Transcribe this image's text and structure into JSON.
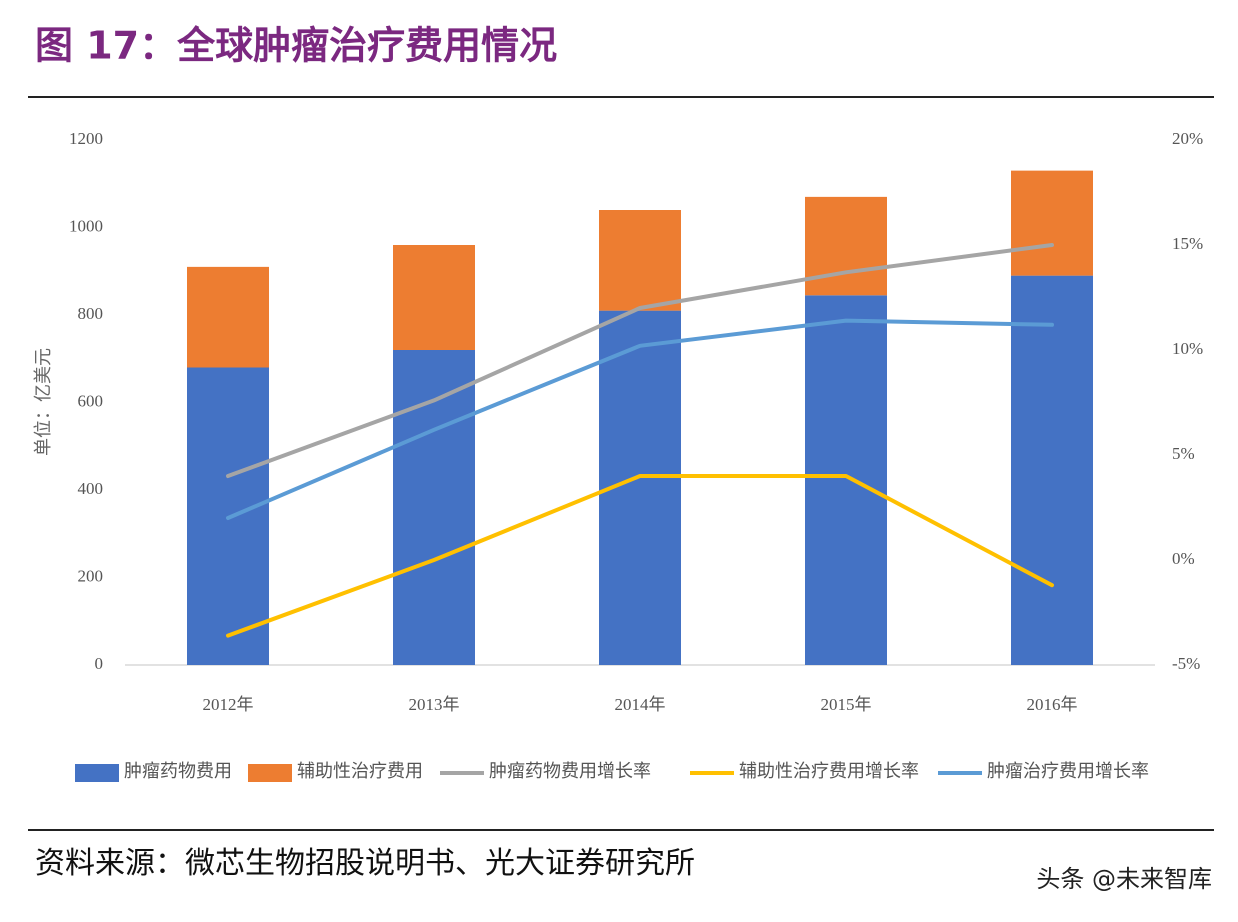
{
  "chart_data": {
    "type": "bar",
    "title": "图 17：全球肿瘤治疗费用情况",
    "y_label": "单位：亿美元",
    "source": "资料来源：微芯生物招股说明书、光大证券研究所",
    "watermark": "头条 @未来智库",
    "categories": [
      "2012年",
      "2013年",
      "2014年",
      "2015年",
      "2016年"
    ],
    "stacked": true,
    "ylim": [
      0,
      1200
    ],
    "yticks": [
      0,
      200,
      400,
      600,
      800,
      1000,
      1200
    ],
    "y2lim": [
      -5,
      20
    ],
    "y2ticks": [
      {
        "value": -5,
        "label": "-5%"
      },
      {
        "value": 0,
        "label": "0%"
      },
      {
        "value": 5,
        "label": "5%"
      },
      {
        "value": 10,
        "label": "10%"
      },
      {
        "value": 15,
        "label": "15%"
      },
      {
        "value": 20,
        "label": "20%"
      }
    ],
    "legend": "bottom",
    "series": [
      {
        "name": "肿瘤药物费用",
        "type": "bar",
        "color": "#4472c4",
        "values": [
          680,
          720,
          810,
          845,
          890
        ]
      },
      {
        "name": "辅助性治疗费用",
        "type": "bar",
        "color": "#ed7d31",
        "values": [
          230,
          240,
          230,
          225,
          240
        ]
      },
      {
        "name": "肿瘤药物费用增长率",
        "type": "line",
        "axis": "y2",
        "color": "#a5a5a5",
        "values": [
          4,
          7.6,
          12,
          13.7,
          15
        ]
      },
      {
        "name": "辅助性治疗费用增长率",
        "type": "line",
        "axis": "y2",
        "color": "#ffc000",
        "values": [
          -3.6,
          0,
          4,
          4,
          -1.2
        ]
      },
      {
        "name": "肿瘤治疗费用增长率",
        "type": "line",
        "axis": "y2",
        "color": "#5b9bd5",
        "values": [
          2,
          6.2,
          10.2,
          11.4,
          11.2
        ]
      }
    ]
  }
}
